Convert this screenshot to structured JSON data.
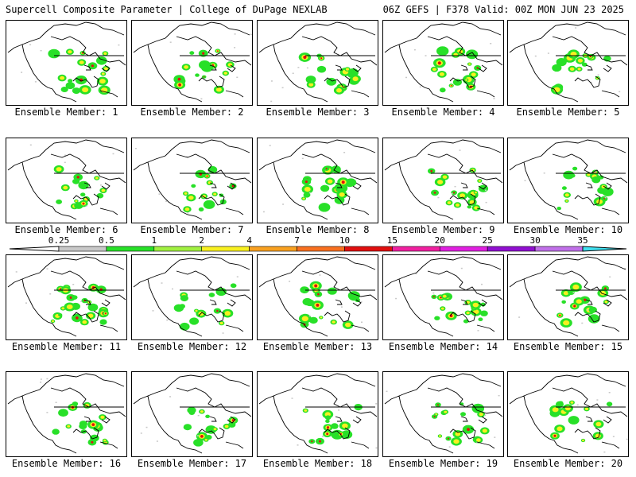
{
  "header": {
    "left": "Supercell Composite Parameter | College of DuPage NEXLAB",
    "right": "06Z GEFS | F378 Valid: 00Z MON JUN 23 2025"
  },
  "members": [
    {
      "label": "Ensemble Member: 1"
    },
    {
      "label": "Ensemble Member: 2"
    },
    {
      "label": "Ensemble Member: 3"
    },
    {
      "label": "Ensemble Member: 4"
    },
    {
      "label": "Ensemble Member: 5"
    },
    {
      "label": "Ensemble Member: 6"
    },
    {
      "label": "Ensemble Member: 7"
    },
    {
      "label": "Ensemble Member: 8"
    },
    {
      "label": "Ensemble Member: 9"
    },
    {
      "label": "Ensemble Member: 10"
    },
    {
      "label": "Ensemble Member: 11"
    },
    {
      "label": "Ensemble Member: 12"
    },
    {
      "label": "Ensemble Member: 13"
    },
    {
      "label": "Ensemble Member: 14"
    },
    {
      "label": "Ensemble Member: 15"
    },
    {
      "label": "Ensemble Member: 16"
    },
    {
      "label": "Ensemble Member: 17"
    },
    {
      "label": "Ensemble Member: 18"
    },
    {
      "label": "Ensemble Member: 19"
    },
    {
      "label": "Ensemble Member: 20"
    }
  ],
  "colorbar": {
    "ticks": [
      "0.25",
      "0.5",
      "1",
      "2",
      "4",
      "7",
      "10",
      "15",
      "20",
      "25",
      "30",
      "35"
    ],
    "colors": [
      "#c8c8c8",
      "#28e028",
      "#a0f040",
      "#f8f020",
      "#f8a020",
      "#f87020",
      "#e01010",
      "#f020a0",
      "#e020e0",
      "#9010d0",
      "#c070e8",
      "#40e0f0"
    ]
  },
  "map_colors": {
    "land_outline": "#000000",
    "low": "#28e028",
    "light": "#a0f040",
    "mid": "#f8f020",
    "high": "#f87020",
    "extreme": "#e01010",
    "faint": "#c8c8c8"
  }
}
